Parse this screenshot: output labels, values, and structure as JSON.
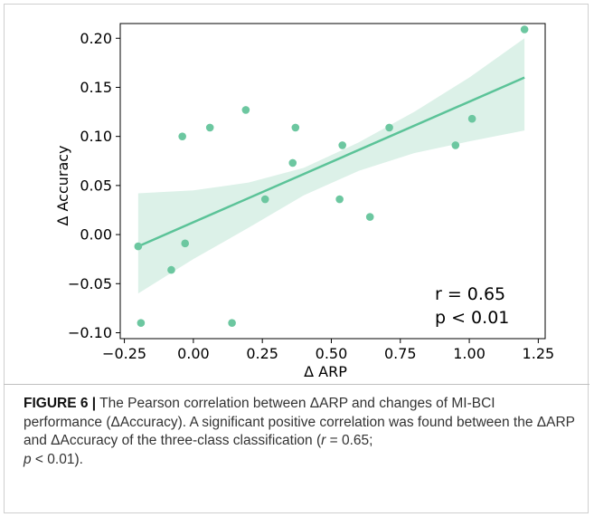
{
  "chart_data": {
    "type": "scatter",
    "xlabel": "Δ ARP",
    "ylabel": "Δ Accuracy",
    "xlim": [
      -0.25,
      1.25
    ],
    "ylim": [
      -0.1,
      0.2
    ],
    "xticks": [
      "−0.25",
      "0.00",
      "0.25",
      "0.50",
      "0.75",
      "1.00",
      "1.25"
    ],
    "yticks": [
      "−0.10",
      "−0.05",
      "0.00",
      "0.05",
      "0.10",
      "0.15",
      "0.20"
    ],
    "points": [
      {
        "x": -0.2,
        "y": -0.012
      },
      {
        "x": -0.19,
        "y": -0.09
      },
      {
        "x": -0.08,
        "y": -0.036
      },
      {
        "x": -0.04,
        "y": 0.1
      },
      {
        "x": -0.03,
        "y": -0.009
      },
      {
        "x": 0.06,
        "y": 0.109
      },
      {
        "x": 0.14,
        "y": -0.09
      },
      {
        "x": 0.19,
        "y": 0.127
      },
      {
        "x": 0.26,
        "y": 0.036
      },
      {
        "x": 0.36,
        "y": 0.073
      },
      {
        "x": 0.37,
        "y": 0.109
      },
      {
        "x": 0.53,
        "y": 0.036
      },
      {
        "x": 0.54,
        "y": 0.091
      },
      {
        "x": 0.64,
        "y": 0.018
      },
      {
        "x": 0.71,
        "y": 0.109
      },
      {
        "x": 0.95,
        "y": 0.091
      },
      {
        "x": 1.01,
        "y": 0.118
      },
      {
        "x": 1.2,
        "y": 0.209
      }
    ],
    "regression": {
      "x": [
        -0.2,
        1.2
      ],
      "y": [
        -0.012,
        0.16
      ]
    },
    "confidence_band": {
      "x": [
        -0.2,
        0.0,
        0.2,
        0.4,
        0.6,
        0.8,
        1.0,
        1.2
      ],
      "lower": [
        -0.06,
        -0.025,
        0.007,
        0.04,
        0.065,
        0.083,
        0.095,
        0.106
      ],
      "upper": [
        0.042,
        0.045,
        0.053,
        0.068,
        0.094,
        0.125,
        0.16,
        0.2
      ]
    },
    "annotation": [
      "r = 0.65",
      "p < 0.01"
    ],
    "grid": false,
    "colors": {
      "points": "#6cc7a0",
      "line": "#5bc398",
      "band": "#dcf1e8"
    }
  },
  "caption": {
    "lead": "FIGURE 6 |",
    "text": " The Pearson correlation between ΔARP and changes of MI-BCI performance (ΔAccuracy). A significant positive correlation was found between the ΔARP and ΔAccuracy of the three-class classification (",
    "r_label": "r",
    "r_text": " = 0.65;",
    "p_label": "p",
    "p_text": " < 0.01)."
  }
}
